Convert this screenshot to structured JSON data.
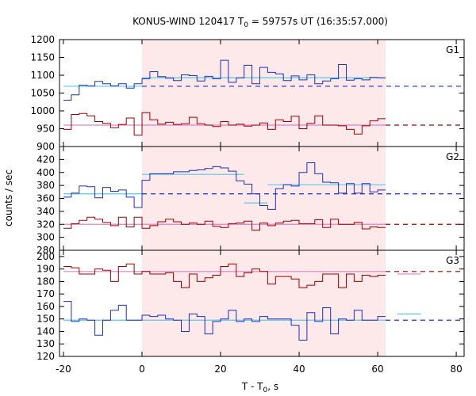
{
  "chart_data": {
    "type": "line",
    "title": "KONUS-WIND 120417 T0 = 59757s UT (16:35:57.000)",
    "title_parts": {
      "prefix": "KONUS-WIND 120417 T",
      "sub": "0",
      "suffix": " = 59757s UT (16:35:57.000)"
    },
    "xlabel": "T - T0, s",
    "xlabel_parts": {
      "prefix": "T - T",
      "sub": "0",
      "suffix": ", s"
    },
    "ylabel": "counts / sec",
    "xlim": [
      -21,
      82
    ],
    "xticks": [
      -20,
      0,
      20,
      40,
      60,
      80
    ],
    "highlight_interval": [
      0,
      62
    ],
    "colors": {
      "high_band": "#a00000",
      "low_band": "#1f2fbf",
      "fit_pink": "#e080c8",
      "fit_cyan": "#58c8e8",
      "shade": "#fde8ea"
    },
    "panels": [
      {
        "label": "G1",
        "ylim": [
          900,
          1200
        ],
        "yticks": [
          900,
          950,
          1000,
          1050,
          1100,
          1150,
          1200
        ],
        "series": [
          {
            "color": "blue",
            "x": [
              -20,
              -18,
              -16,
              -14,
              -12,
              -10,
              -8,
              -6,
              -4,
              -2,
              0,
              2,
              4,
              6,
              8,
              10,
              12,
              14,
              16,
              18,
              20,
              22,
              24,
              26,
              28,
              30,
              32,
              34,
              36,
              38,
              40,
              42,
              44,
              46,
              48,
              50,
              52,
              54,
              56,
              58,
              60
            ],
            "y": [
              1030,
              1045,
              1072,
              1070,
              1083,
              1076,
              1070,
              1076,
              1064,
              1076,
              1090,
              1110,
              1096,
              1092,
              1085,
              1101,
              1099,
              1084,
              1097,
              1090,
              1142,
              1080,
              1093,
              1128,
              1076,
              1122,
              1108,
              1104,
              1085,
              1098,
              1087,
              1101,
              1076,
              1084,
              1090,
              1130,
              1086,
              1090,
              1087,
              1094,
              1093
            ]
          },
          {
            "color": "red",
            "x": [
              -20,
              -18,
              -16,
              -14,
              -12,
              -10,
              -8,
              -6,
              -4,
              -2,
              0,
              2,
              4,
              6,
              8,
              10,
              12,
              14,
              16,
              18,
              20,
              22,
              24,
              26,
              28,
              30,
              32,
              34,
              36,
              38,
              40,
              42,
              44,
              46,
              48,
              50,
              52,
              54,
              56,
              58,
              60
            ],
            "y": [
              948,
              990,
              993,
              986,
              970,
              965,
              953,
              962,
              980,
              932,
              995,
              975,
              963,
              968,
              962,
              964,
              982,
              964,
              960,
              956,
              970,
              960,
              963,
              957,
              960,
              966,
              948,
              975,
              970,
              985,
              950,
              965,
              986,
              960,
              960,
              958,
              948,
              935,
              958,
              972,
              978
            ]
          }
        ],
        "fits": [
          {
            "color": "cyan",
            "x": [
              -20,
              0
            ],
            "y": [
              1069,
              1069
            ]
          },
          {
            "color": "cyan",
            "x": [
              0,
              62
            ],
            "y": [
              1093,
              1093
            ]
          },
          {
            "color": "pink",
            "x": [
              -20,
              62
            ],
            "y": [
              960,
              960
            ]
          }
        ],
        "background_levels": [
          {
            "color": "blue",
            "x": [
              0,
              82
            ],
            "y": [
              1069,
              1069
            ],
            "dashed": true
          },
          {
            "color": "red",
            "x": [
              62,
              82
            ],
            "y": [
              960,
              960
            ],
            "dashed": true
          }
        ]
      },
      {
        "label": "G2",
        "ylim": [
          280,
          440
        ],
        "yticks": [
          280,
          300,
          320,
          340,
          360,
          380,
          400,
          420
        ],
        "series": [
          {
            "color": "blue",
            "x": [
              -20,
              -18,
              -16,
              -14,
              -12,
              -10,
              -8,
              -6,
              -4,
              -2,
              0,
              2,
              4,
              6,
              8,
              10,
              12,
              14,
              16,
              18,
              20,
              22,
              24,
              26,
              28,
              30,
              32,
              34,
              36,
              38,
              40,
              42,
              44,
              46,
              48,
              50,
              52,
              54,
              56,
              58,
              60
            ],
            "y": [
              362,
              368,
              379,
              378,
              361,
              377,
              371,
              373,
              362,
              346,
              388,
              398,
              398,
              398,
              401,
              401,
              403,
              404,
              406,
              409,
              407,
              402,
              387,
              382,
              367,
              349,
              343,
              375,
              381,
              379,
              400,
              415,
              398,
              385,
              384,
              368,
              383,
              368,
              383,
              370,
              373
            ]
          },
          {
            "color": "red",
            "x": [
              -20,
              -18,
              -16,
              -14,
              -12,
              -10,
              -8,
              -6,
              -4,
              -2,
              0,
              2,
              4,
              6,
              8,
              10,
              12,
              14,
              16,
              18,
              20,
              22,
              24,
              26,
              28,
              30,
              32,
              34,
              36,
              38,
              40,
              42,
              44,
              46,
              48,
              50,
              52,
              54,
              56,
              58,
              60
            ],
            "y": [
              314,
              321,
              326,
              331,
              328,
              323,
              318,
              331,
              316,
              331,
              314,
              318,
              324,
              328,
              324,
              320,
              322,
              320,
              325,
              317,
              315,
              321,
              322,
              325,
              311,
              322,
              318,
              322,
              325,
              326,
              321,
              321,
              327,
              315,
              328,
              320,
              320,
              323,
              313,
              316,
              315
            ]
          }
        ],
        "fits": [
          {
            "color": "cyan",
            "x": [
              -20,
              0
            ],
            "y": [
              367,
              367
            ]
          },
          {
            "color": "cyan",
            "x": [
              0,
              26
            ],
            "y": [
              397,
              397
            ]
          },
          {
            "color": "cyan",
            "x": [
              26,
              32
            ],
            "y": [
              353,
              353
            ]
          },
          {
            "color": "cyan",
            "x": [
              32,
              62
            ],
            "y": [
              381,
              381
            ]
          },
          {
            "color": "pink",
            "x": [
              -20,
              62
            ],
            "y": [
              320,
              320
            ]
          }
        ],
        "background_levels": [
          {
            "color": "blue",
            "x": [
              0,
              82
            ],
            "y": [
              367,
              367
            ],
            "dashed": true
          },
          {
            "color": "red",
            "x": [
              62,
              82
            ],
            "y": [
              320,
              320
            ],
            "dashed": true
          }
        ]
      },
      {
        "label": "G3",
        "ylim": [
          120,
          205
        ],
        "yticks": [
          120,
          130,
          140,
          150,
          160,
          170,
          180,
          190,
          200
        ],
        "series": [
          {
            "color": "red",
            "x": [
              -20,
              -18,
              -16,
              -14,
              -12,
              -10,
              -8,
              -6,
              -4,
              -2,
              0,
              2,
              4,
              6,
              8,
              10,
              12,
              14,
              16,
              18,
              20,
              22,
              24,
              26,
              28,
              30,
              32,
              34,
              36,
              38,
              40,
              42,
              44,
              46,
              48,
              50,
              52,
              54,
              56,
              58,
              60
            ],
            "y": [
              192,
              191,
              186,
              186,
              190,
              189,
              180,
              192,
              194,
              186,
              188,
              186,
              186,
              187,
              180,
              175,
              186,
              180,
              183,
              185,
              192,
              194,
              184,
              187,
              190,
              188,
              178,
              184,
              184,
              182,
              175,
              177,
              180,
              186,
              186,
              175,
              186,
              180,
              185,
              184,
              185
            ]
          },
          {
            "color": "blue",
            "x": [
              -20,
              -18,
              -16,
              -14,
              -12,
              -10,
              -8,
              -6,
              -4,
              -2,
              0,
              2,
              4,
              6,
              8,
              10,
              12,
              14,
              16,
              18,
              20,
              22,
              24,
              26,
              28,
              30,
              32,
              34,
              36,
              38,
              40,
              42,
              44,
              46,
              48,
              50,
              52,
              54,
              56,
              58,
              60
            ],
            "y": [
              164,
              148,
              150,
              149,
              137,
              149,
              157,
              161,
              149,
              149,
              153,
              152,
              153,
              150,
              149,
              140,
              154,
              152,
              138,
              148,
              150,
              157,
              148,
              150,
              148,
              152,
              150,
              150,
              150,
              145,
              133,
              155,
              148,
              159,
              138,
              150,
              149,
              157,
              149,
              149,
              152
            ]
          }
        ],
        "fits": [
          {
            "color": "pink",
            "x": [
              -20,
              62
            ],
            "y": [
              188,
              188
            ]
          },
          {
            "color": "cyan",
            "x": [
              -20,
              62
            ],
            "y": [
              149,
              149
            ]
          },
          {
            "color": "pink",
            "x": [
              65,
              71
            ],
            "y": [
              186,
              186
            ]
          },
          {
            "color": "cyan",
            "x": [
              65,
              71
            ],
            "y": [
              154,
              154
            ]
          }
        ],
        "background_levels": [
          {
            "color": "red",
            "x": [
              62,
              82
            ],
            "y": [
              188,
              188
            ],
            "dashed": true
          },
          {
            "color": "blue",
            "x": [
              62,
              82
            ],
            "y": [
              149,
              149
            ],
            "dashed": true
          }
        ]
      }
    ]
  }
}
